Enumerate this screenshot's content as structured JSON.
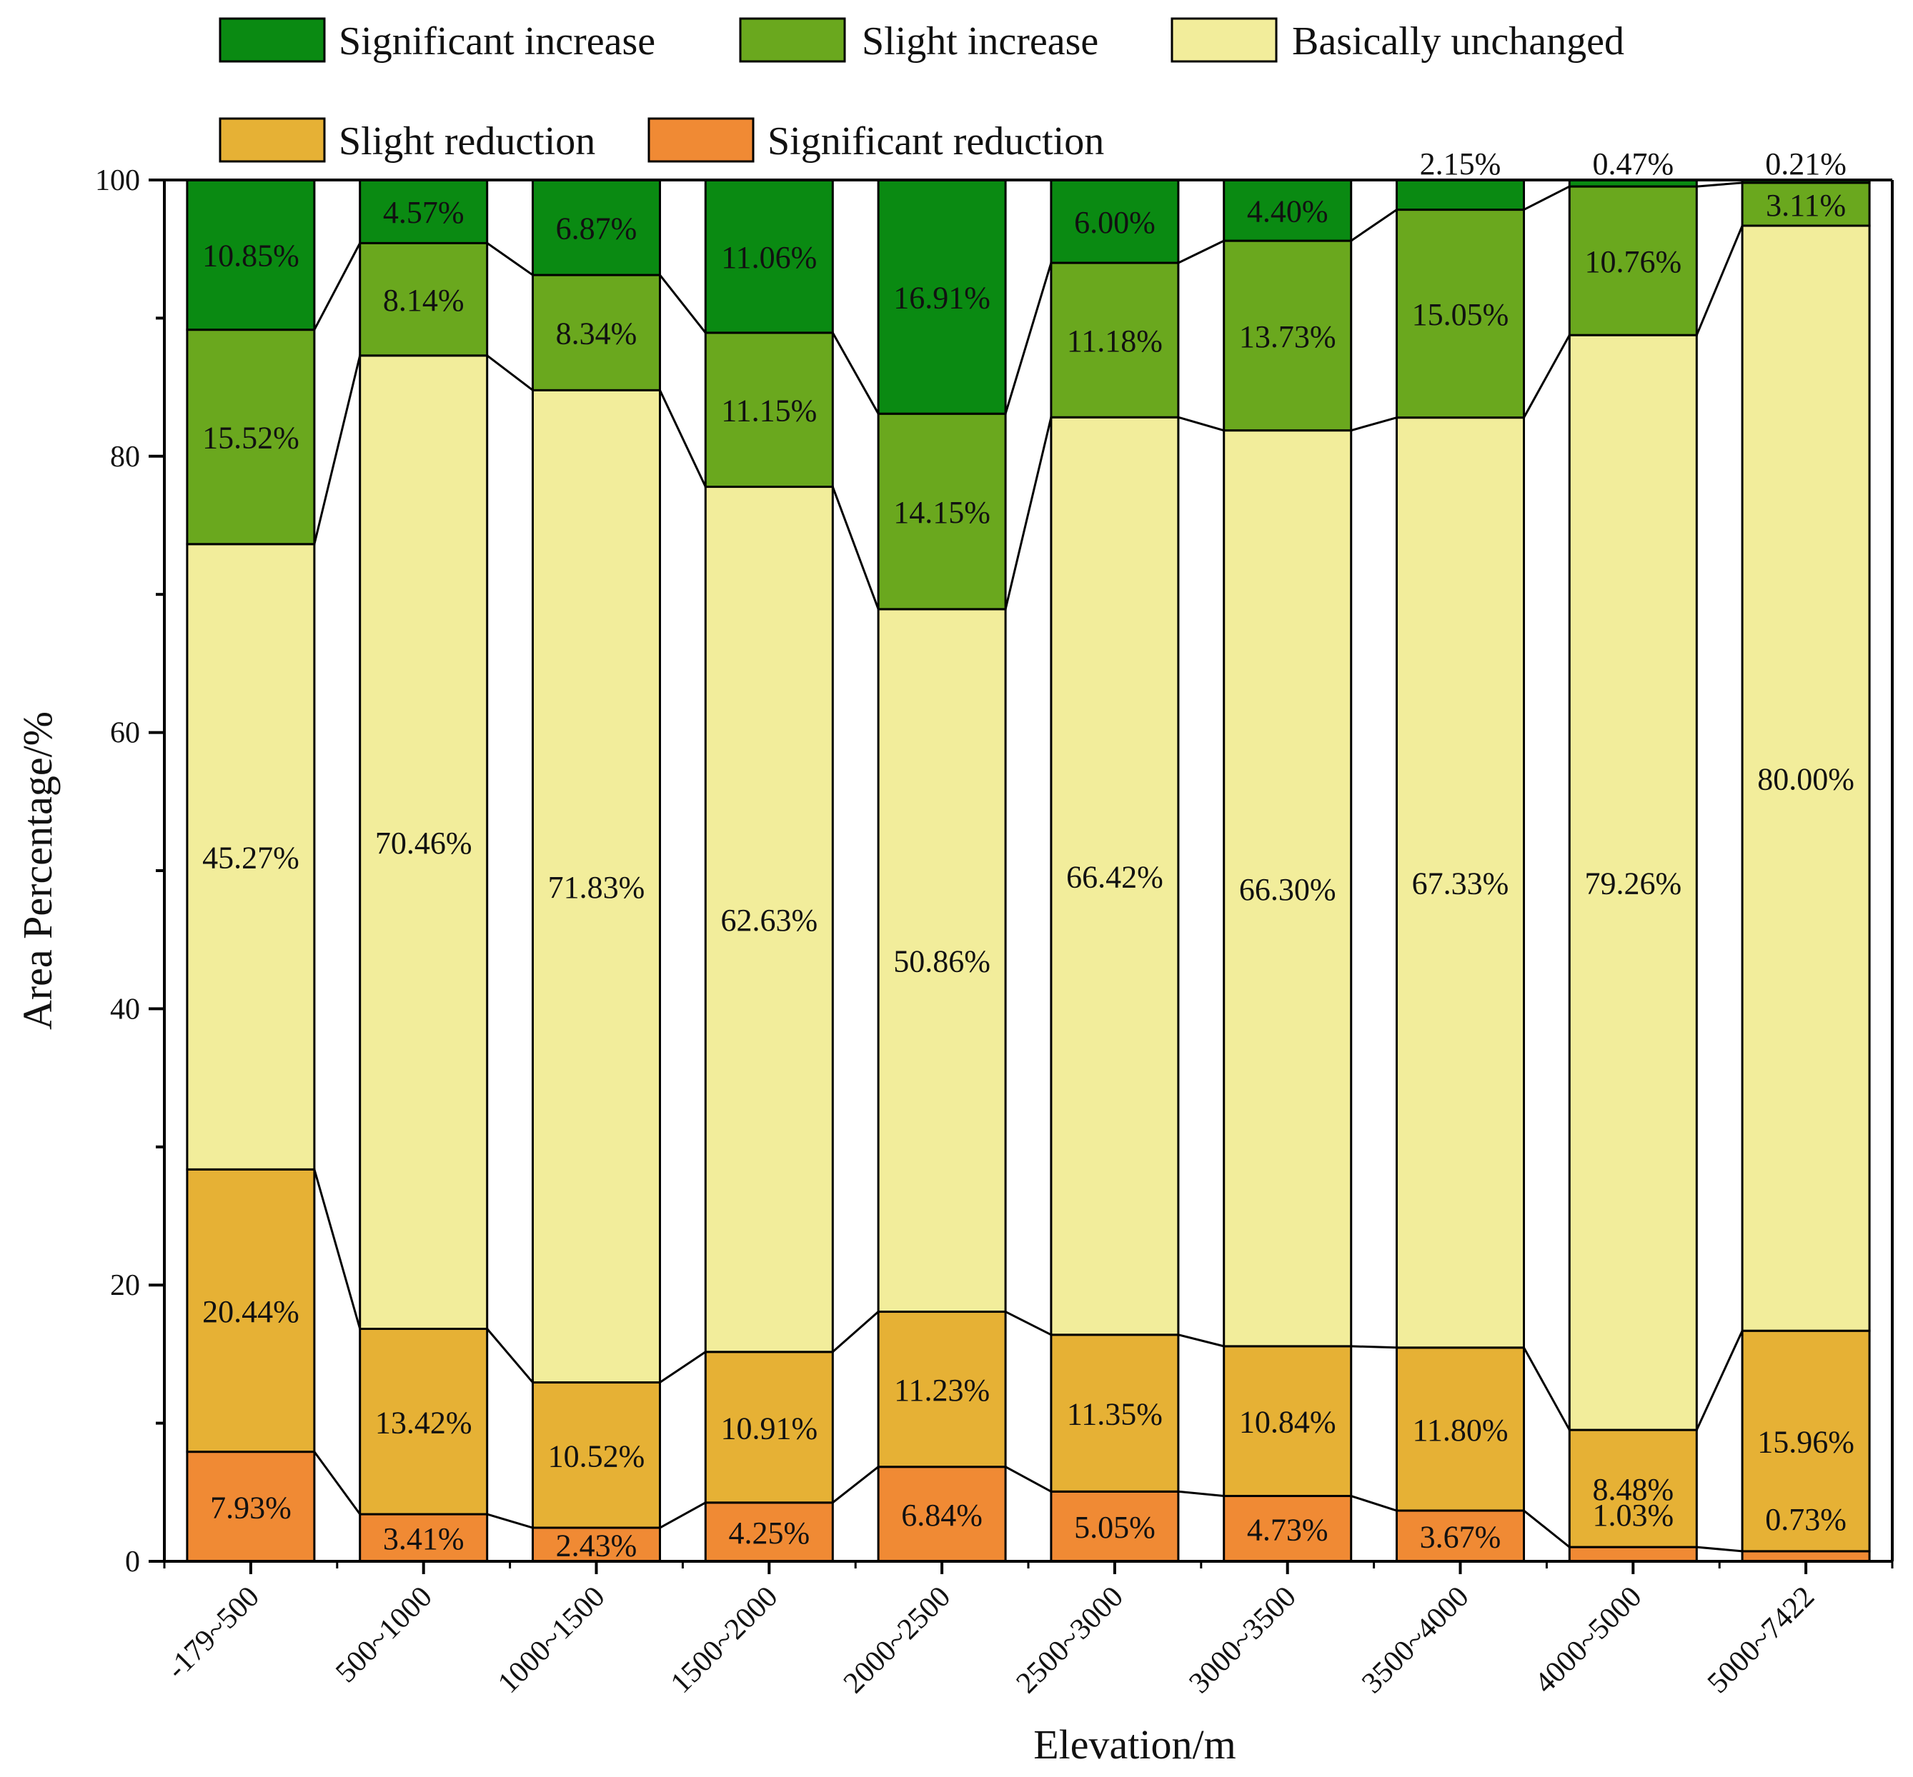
{
  "chart_data": {
    "type": "bar",
    "stacked": true,
    "xlabel": "Elevation/m",
    "ylabel": "Area Percentage/%",
    "ylim": [
      0,
      100
    ],
    "yticks": [
      "0",
      "20",
      "40",
      "60",
      "80",
      "100"
    ],
    "categories": [
      "-179~500",
      "500~1000",
      "1000~1500",
      "1500~2000",
      "2000~2500",
      "2500~3000",
      "3000~3500",
      "3500~4000",
      "4000~5000",
      "5000~7422"
    ],
    "series": [
      {
        "name": "Significant reduction",
        "color": "#f08a34",
        "values": [
          7.93,
          3.41,
          2.43,
          4.25,
          6.84,
          5.05,
          4.73,
          3.67,
          1.03,
          0.73
        ],
        "labels": [
          "7.93%",
          "3.41%",
          "2.43%",
          "4.25%",
          "6.84%",
          "5.05%",
          "4.73%",
          "3.67%",
          "1.03%",
          "0.73%"
        ]
      },
      {
        "name": "Slight reduction",
        "color": "#e6b135",
        "values": [
          20.44,
          13.42,
          10.52,
          10.91,
          11.23,
          11.35,
          10.84,
          11.8,
          8.48,
          15.96
        ],
        "labels": [
          "20.44%",
          "13.42%",
          "10.52%",
          "10.91%",
          "11.23%",
          "11.35%",
          "10.84%",
          "11.80%",
          "8.48%",
          "15.96%"
        ]
      },
      {
        "name": "Basically unchanged",
        "color": "#f2ed9b",
        "values": [
          45.27,
          70.46,
          71.83,
          62.63,
          50.86,
          66.42,
          66.3,
          67.33,
          79.26,
          80.0
        ],
        "labels": [
          "45.27%",
          "70.46%",
          "71.83%",
          "62.63%",
          "50.86%",
          "66.42%",
          "66.30%",
          "67.33%",
          "79.26%",
          "80.00%"
        ]
      },
      {
        "name": "Slight increase",
        "color": "#6aa81e",
        "values": [
          15.52,
          8.14,
          8.34,
          11.15,
          14.15,
          11.18,
          13.73,
          15.05,
          10.76,
          3.11
        ],
        "labels": [
          "15.52%",
          "8.14%",
          "8.34%",
          "11.15%",
          "14.15%",
          "11.18%",
          "13.73%",
          "15.05%",
          "10.76%",
          "3.11%"
        ]
      },
      {
        "name": "Significant increase",
        "color": "#0a8a12",
        "values": [
          10.85,
          4.57,
          6.87,
          11.06,
          16.91,
          6.0,
          4.4,
          2.15,
          0.47,
          0.21
        ],
        "labels": [
          "10.85%",
          "4.57%",
          "6.87%",
          "11.06%",
          "16.91%",
          "6.00%",
          "4.40%",
          "2.15%",
          "0.47%",
          "0.21%"
        ]
      }
    ],
    "legend": {
      "placement": "top",
      "entries": [
        "Significant increase",
        "Slight increase",
        "Basically unchanged",
        "Slight reduction",
        "Significant reduction"
      ]
    },
    "connector_lines": true
  }
}
